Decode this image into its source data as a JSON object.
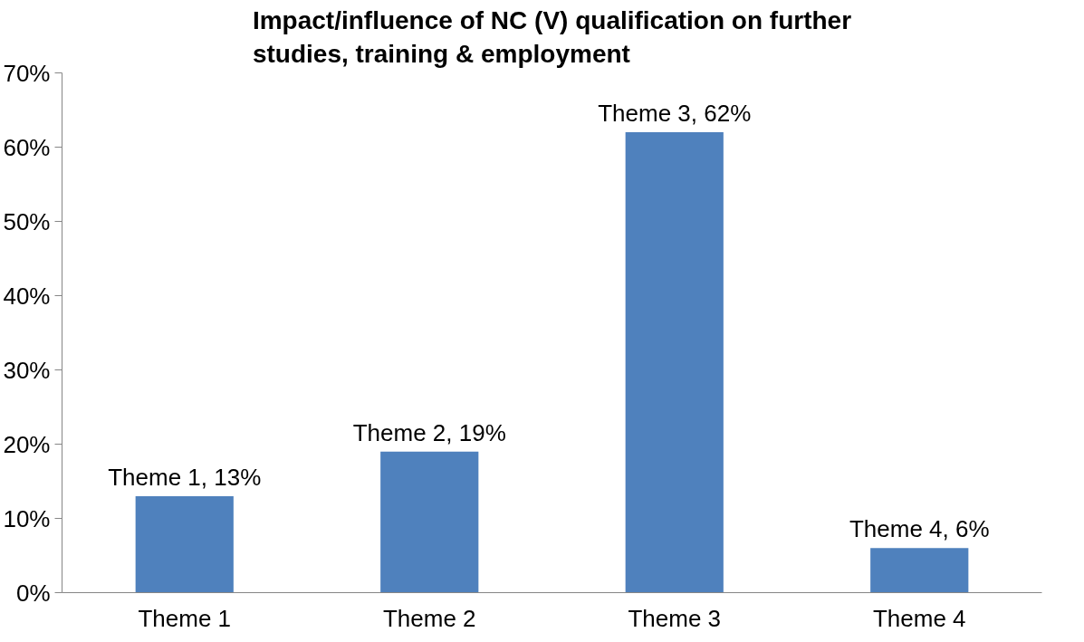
{
  "chart_data": {
    "type": "bar",
    "title": "Impact/influence of NC (V) qualification on further\nstudies, training & employment",
    "categories": [
      "Theme 1",
      "Theme 2",
      "Theme 3",
      "Theme 4"
    ],
    "values": [
      13,
      19,
      62,
      6
    ],
    "value_labels": [
      "Theme 1, 13%",
      "Theme 2, 19%",
      "Theme 3, 62%",
      "Theme 4, 6%"
    ],
    "color": "#4f81bd",
    "ylim": [
      0,
      70
    ],
    "yticks": [
      {
        "value": 0,
        "label": "0%"
      },
      {
        "value": 10,
        "label": "10%"
      },
      {
        "value": 20,
        "label": "20%"
      },
      {
        "value": 30,
        "label": "30%"
      },
      {
        "value": 40,
        "label": "40%"
      },
      {
        "value": 50,
        "label": "50%"
      },
      {
        "value": 60,
        "label": "60%"
      },
      {
        "value": 70,
        "label": "70%"
      }
    ],
    "grid": false
  }
}
